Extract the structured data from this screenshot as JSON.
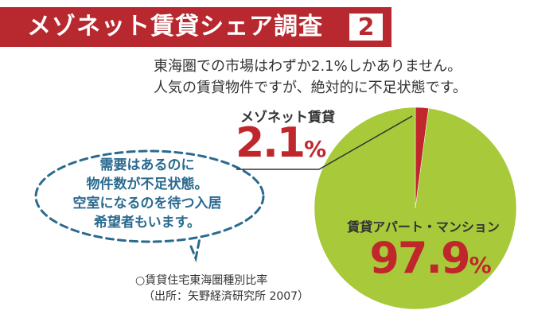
{
  "banner": {
    "title": "メゾネット賃貸シェア調査",
    "number": "2",
    "color": "#b8282f"
  },
  "lead": {
    "line1": "東海圏での市場はわずか2.1%しかありません。",
    "line2": "人気の賃貸物件ですが、絶対的に不足状態です。"
  },
  "bubble": {
    "line1": "需要はあるのに",
    "line2": "物件数が不足状態。",
    "line3": "空室になるのを待つ入居",
    "line4": "希望者もいます。"
  },
  "source": {
    "line1": "○賃貸住宅東海圏種別比率",
    "line2": "（出所：矢野経済研究所 2007）"
  },
  "chart_data": {
    "type": "pie",
    "slices": [
      {
        "label": "メゾネット賃貸",
        "value": 2.1,
        "value_text": "2.1",
        "unit": "%",
        "color": "#c0272d"
      },
      {
        "label": "賃貸アパート・マンション",
        "value": 97.9,
        "value_text": "97.9",
        "unit": "%",
        "color": "#a7c93a"
      }
    ]
  }
}
